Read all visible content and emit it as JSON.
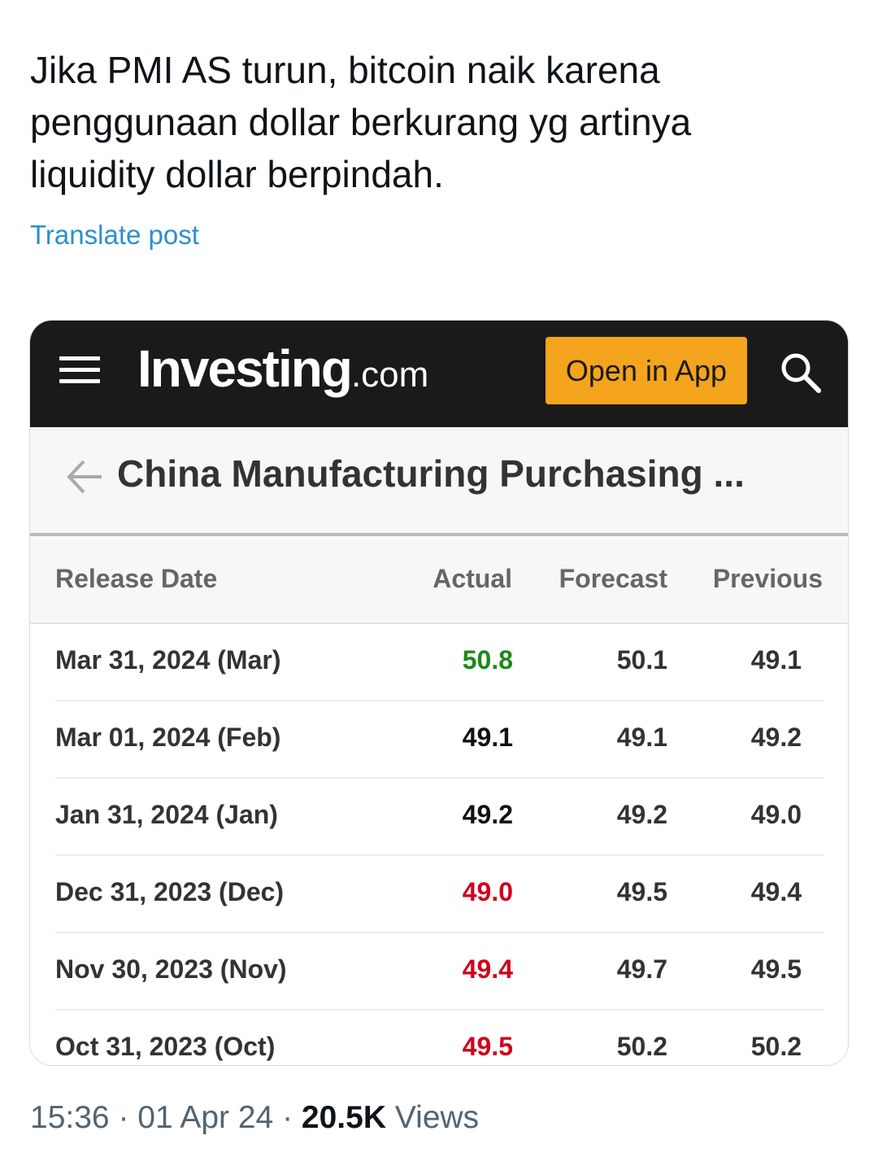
{
  "post": {
    "lines": [
      "Jika PMI AS turun, bitcoin naik karena",
      "penggunaan dollar berkurang yg artinya",
      "liquidity dollar berpindah."
    ],
    "translate_label": "Translate post"
  },
  "card": {
    "brand": "Investing",
    "brand_tld": ".com",
    "open_app_label": "Open in App",
    "page_title": "China Manufacturing Purchasing ...",
    "columns": {
      "date": "Release Date",
      "actual": "Actual",
      "forecast": "Forecast",
      "previous": "Previous"
    },
    "rows": [
      {
        "date": "Mar 31, 2024 (Mar)",
        "actual": "50.8",
        "forecast": "50.1",
        "previous": "49.1",
        "actual_color": "#1a8a1a"
      },
      {
        "date": "Mar 01, 2024 (Feb)",
        "actual": "49.1",
        "forecast": "49.1",
        "previous": "49.2",
        "actual_color": "#111111"
      },
      {
        "date": "Jan 31, 2024 (Jan)",
        "actual": "49.2",
        "forecast": "49.2",
        "previous": "49.0",
        "actual_color": "#111111"
      },
      {
        "date": "Dec 31, 2023 (Dec)",
        "actual": "49.0",
        "forecast": "49.5",
        "previous": "49.4",
        "actual_color": "#d0021b"
      },
      {
        "date": "Nov 30, 2023 (Nov)",
        "actual": "49.4",
        "forecast": "49.7",
        "previous": "49.5",
        "actual_color": "#d0021b"
      },
      {
        "date": "Oct 31, 2023 (Oct)",
        "actual": "49.5",
        "forecast": "50.2",
        "previous": "50.2",
        "actual_color": "#d0021b"
      }
    ]
  },
  "meta": {
    "time": "15:36",
    "date": "01 Apr 24",
    "views_count": "20.5K",
    "views_label": "Views"
  },
  "icons": {
    "menu": "hamburger-menu-icon",
    "search": "search-icon",
    "back": "back-arrow-icon"
  },
  "colors": {
    "topbar": "#1a1a1a",
    "open_app": "#f4a41d",
    "link": "#2b8fcf"
  }
}
